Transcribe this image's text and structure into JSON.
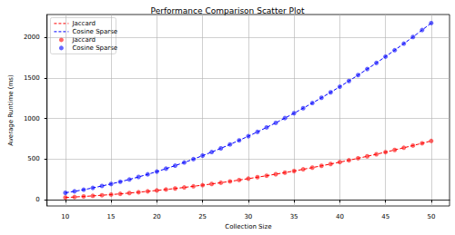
{
  "chart_data": {
    "type": "scatter",
    "title": "Performance Comparison Scatter Plot",
    "x_label": "Collection Size",
    "y_label": "Average Runtime (ms)",
    "x": [
      10,
      11,
      12,
      13,
      14,
      15,
      16,
      17,
      18,
      19,
      20,
      21,
      22,
      23,
      24,
      25,
      26,
      27,
      28,
      29,
      30,
      31,
      32,
      33,
      34,
      35,
      36,
      37,
      38,
      39,
      40,
      41,
      42,
      43,
      44,
      45,
      46,
      47,
      48,
      49,
      50
    ],
    "series": [
      {
        "name": "Jaccard",
        "color": "#ff0000",
        "marker": "circle",
        "line_style": "dashed",
        "values": [
          29,
          35,
          42,
          49,
          57,
          65,
          74,
          84,
          94,
          105,
          116,
          128,
          140,
          153,
          167,
          181,
          196,
          211,
          227,
          244,
          261,
          279,
          297,
          316,
          335,
          355,
          376,
          397,
          419,
          441,
          464,
          487,
          512,
          536,
          561,
          587,
          614,
          641,
          668,
          696,
          725
        ]
      },
      {
        "name": "Cosine Sparse",
        "color": "#0000ff",
        "marker": "circle",
        "line_style": "dashed",
        "values": [
          87,
          105,
          125,
          147,
          171,
          196,
          223,
          251,
          282,
          314,
          348,
          384,
          421,
          460,
          501,
          544,
          588,
          634,
          682,
          732,
          783,
          836,
          891,
          947,
          1006,
          1066,
          1128,
          1191,
          1256,
          1323,
          1392,
          1462,
          1535,
          1609,
          1684,
          1762,
          1841,
          1922,
          2004,
          2089,
          2175
        ]
      }
    ],
    "xlim": [
      8,
      52
    ],
    "xticks": [
      10,
      15,
      20,
      25,
      30,
      35,
      40,
      45,
      50
    ],
    "ylim": [
      -75,
      2280
    ],
    "yticks": [
      0,
      500,
      1000,
      1500,
      2000
    ],
    "grid": true,
    "legend": "upper left"
  }
}
